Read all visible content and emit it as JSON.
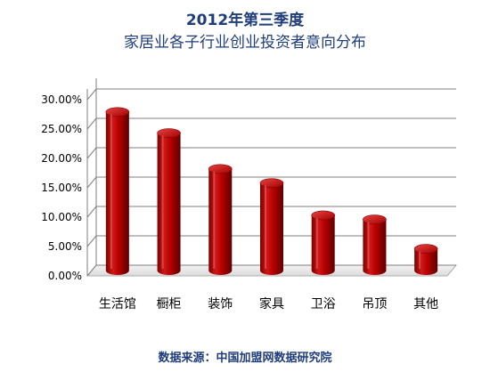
{
  "title_line1": "2012年第三季度",
  "title_line2": "家居业各子行业创业投资者意向分布",
  "source_text": "数据来源：中国加盟网数据研究院",
  "chart_data": {
    "type": "bar",
    "title": "2012年第三季度 家居业各子行业创业投资者意向分布",
    "categories": [
      "生活馆",
      "橱柜",
      "装饰",
      "家具",
      "卫浴",
      "吊顶",
      "其他"
    ],
    "values": [
      0.27,
      0.234,
      0.173,
      0.149,
      0.094,
      0.087,
      0.037
    ],
    "ylim": [
      0,
      0.3
    ],
    "yticks": [
      0,
      0.05,
      0.1,
      0.15,
      0.2,
      0.25,
      0.3
    ],
    "ytick_labels": [
      "0.00%",
      "5.00%",
      "10.00%",
      "15.00%",
      "20.00%",
      "25.00%",
      "30.00%"
    ],
    "grid": true,
    "style": "3d-cylinder",
    "colors": {
      "bar_main": "#b20000",
      "bar_dark": "#6e0000",
      "bar_light": "#e24a4a",
      "gridline": "#7f7f7f"
    }
  }
}
